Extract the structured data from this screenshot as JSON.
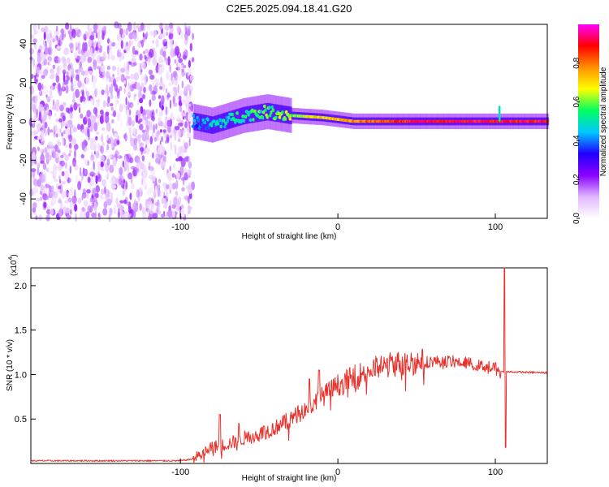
{
  "figure_title": "C2E5.2025.094.18.41.G20",
  "colors": {
    "snr_line": "#e8302a",
    "axis": "#000000",
    "colormap": [
      "#ffffff",
      "#e0b8ff",
      "#8a00ff",
      "#2000ff",
      "#00c8ff",
      "#00ff60",
      "#ffff00",
      "#ff9000",
      "#ff0000",
      "#ff00ff"
    ]
  },
  "chart_data": [
    {
      "type": "heatmap",
      "title": "",
      "xlabel": "Height of straight line (km)",
      "ylabel": "Frequency (Hz)",
      "xlim": [
        -195,
        133
      ],
      "ylim": [
        -50,
        50
      ],
      "xticks": [
        -100,
        0,
        100
      ],
      "yticks": [
        -40,
        -20,
        0,
        20,
        40
      ],
      "colorbar": {
        "label": "Normalized spectral amplitude",
        "range": [
          0,
          1
        ],
        "ticks": [
          "0.0",
          "0.2",
          "0.4",
          "0.6",
          "0.8"
        ],
        "tick_values": [
          0.0,
          0.2,
          0.4,
          0.6,
          0.8
        ]
      },
      "regions": [
        {
          "name": "noise",
          "x_range": [
            -195,
            -92
          ],
          "freq_range": [
            -50,
            50
          ],
          "amplitude": 0.1
        },
        {
          "name": "signal",
          "center_freq_points": [
            {
              "x": -92,
              "freq": 0
            },
            {
              "x": -80,
              "freq": -2
            },
            {
              "x": -60,
              "freq": 3
            },
            {
              "x": -45,
              "freq": 5
            },
            {
              "x": -30,
              "freq": 3
            },
            {
              "x": -10,
              "freq": 2
            },
            {
              "x": 10,
              "freq": 0
            },
            {
              "x": 50,
              "freq": 0
            },
            {
              "x": 100,
              "freq": 0
            },
            {
              "x": 133,
              "freq": 0
            }
          ],
          "amplitude_start": 0.4,
          "amplitude_end": 0.9
        },
        {
          "name": "spike",
          "x": 102,
          "freq_range": [
            0,
            8
          ],
          "amplitude": 0.5
        }
      ]
    },
    {
      "type": "line",
      "title": "",
      "xlabel": "Height of straight line (km)",
      "ylabel": "SNR (10 * v/v)",
      "y_multiplier_label": "(x10",
      "y_multiplier_exp": "4",
      "y_multiplier_close": ")",
      "xlim": [
        -195,
        133
      ],
      "ylim": [
        0,
        2.2
      ],
      "xticks": [
        -100,
        0,
        100
      ],
      "yticks": [
        0.5,
        1.0,
        1.5,
        2.0
      ],
      "ytick_labels": [
        "0.5",
        "1.0",
        "1.5",
        "2.0"
      ],
      "series": [
        {
          "name": "SNR",
          "trend": [
            [
              -195,
              0.03
            ],
            [
              -100,
              0.03
            ],
            [
              -92,
              0.05
            ],
            [
              -85,
              0.12
            ],
            [
              -80,
              0.18
            ],
            [
              -70,
              0.22
            ],
            [
              -60,
              0.28
            ],
            [
              -50,
              0.33
            ],
            [
              -40,
              0.4
            ],
            [
              -30,
              0.5
            ],
            [
              -20,
              0.62
            ],
            [
              -10,
              0.75
            ],
            [
              0,
              0.88
            ],
            [
              10,
              0.97
            ],
            [
              20,
              1.05
            ],
            [
              30,
              1.1
            ],
            [
              40,
              1.13
            ],
            [
              50,
              1.14
            ],
            [
              60,
              1.15
            ],
            [
              70,
              1.15
            ],
            [
              80,
              1.14
            ],
            [
              90,
              1.1
            ],
            [
              100,
              1.08
            ],
            [
              104,
              1.03
            ],
            [
              110,
              1.03
            ],
            [
              133,
              1.02
            ]
          ],
          "spikes": [
            [
              -75,
              0.55
            ],
            [
              -63,
              0.45
            ],
            [
              -47,
              0.42
            ],
            [
              -12,
              1.05
            ],
            [
              -18,
              0.95
            ],
            [
              106,
              2.2
            ],
            [
              106.5,
              0.18
            ]
          ]
        }
      ]
    }
  ]
}
